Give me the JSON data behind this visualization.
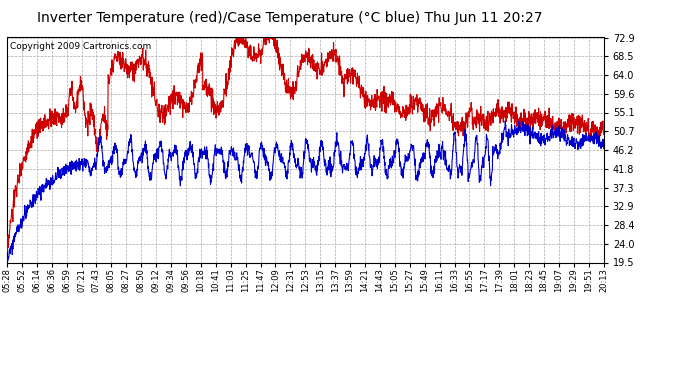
{
  "title": "Inverter Temperature (red)/Case Temperature (°C blue) Thu Jun 11 20:27",
  "copyright": "Copyright 2009 Cartronics.com",
  "y_ticks": [
    19.5,
    24.0,
    28.4,
    32.9,
    37.3,
    41.8,
    46.2,
    50.7,
    55.1,
    59.6,
    64.0,
    68.5,
    72.9
  ],
  "y_min": 19.5,
  "y_max": 72.9,
  "x_labels": [
    "05:28",
    "05:52",
    "06:14",
    "06:36",
    "06:59",
    "07:21",
    "07:43",
    "08:05",
    "08:27",
    "08:50",
    "09:12",
    "09:34",
    "09:56",
    "10:18",
    "10:41",
    "11:03",
    "11:25",
    "11:47",
    "12:09",
    "12:31",
    "12:53",
    "13:15",
    "13:37",
    "13:59",
    "14:21",
    "14:43",
    "15:05",
    "15:27",
    "15:49",
    "16:11",
    "16:33",
    "16:55",
    "17:17",
    "17:39",
    "18:01",
    "18:23",
    "18:45",
    "19:07",
    "19:29",
    "19:51",
    "20:13"
  ],
  "background_color": "#ffffff",
  "plot_bg_color": "#ffffff",
  "grid_color": "#aaaaaa",
  "red_color": "#cc0000",
  "blue_color": "#0000cc",
  "title_fontsize": 10,
  "copyright_fontsize": 6.5
}
